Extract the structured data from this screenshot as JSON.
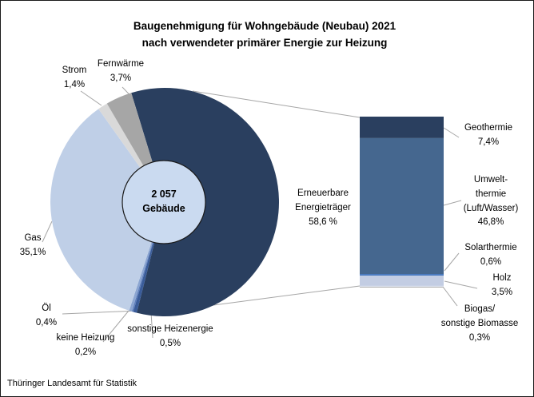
{
  "title": {
    "line1": "Baugenehmigung für Wohngebäude (Neubau) 2021",
    "line2": "nach verwendeter primärer Energie zur Heizung"
  },
  "source": "Thüringer Landesamt für Statistik",
  "labels": {
    "strom": [
      "Strom",
      "1,4%"
    ],
    "fernwaerme": [
      "Fernwärme",
      "3,7%"
    ],
    "gas": [
      "Gas",
      "35,1%"
    ],
    "oel": [
      "Öl",
      "0,4%"
    ],
    "keine_heizung": [
      "keine Heizung",
      "0,2%"
    ],
    "sonstige": [
      "sonstige Heizenergie",
      "0,5%"
    ],
    "erneuerbare": [
      "Erneuerbare",
      "Energieträger",
      "58,6 %"
    ],
    "geothermie": [
      "Geothermie",
      "7,4%"
    ],
    "umwelt": [
      "Umwelt-",
      "thermie",
      "(Luft/Wasser)",
      "46,8%"
    ],
    "solarthermie": [
      "Solarthermie",
      "0,6%"
    ],
    "holz": [
      "Holz",
      "3,5%"
    ],
    "biogas": [
      "Biogas/",
      "sonstige Biomasse",
      "0,3%"
    ],
    "center": [
      "2 057",
      "Gebäude"
    ]
  },
  "chart_data": {
    "type": "pie",
    "title": "Baugenehmigung für Wohngebäude (Neubau) 2021 nach verwendeter primärer Energie zur Heizung",
    "unit": "%",
    "center_total": "2 057 Gebäude",
    "hole_color": "#cadaf0",
    "line_color": "#a6a6a6",
    "slices": [
      {
        "key": "erneuerbare",
        "label": "Erneuerbare Energieträger",
        "value": 58.6,
        "color": "#2a3f5f"
      },
      {
        "key": "sonstige-heizenergie",
        "label": "sonstige Heizenergie",
        "value": 0.5,
        "color": "#3a5c99"
      },
      {
        "key": "keine-heizung",
        "label": "keine Heizung",
        "value": 0.2,
        "color": "#5b7cba"
      },
      {
        "key": "oel",
        "label": "Öl",
        "value": 0.4,
        "color": "#8ba5d1"
      },
      {
        "key": "gas",
        "label": "Gas",
        "value": 35.1,
        "color": "#bfcfe7"
      },
      {
        "key": "strom",
        "label": "Strom",
        "value": 1.4,
        "color": "#d9d9d9"
      },
      {
        "key": "fernwaerme",
        "label": "Fernwärme",
        "value": 3.7,
        "color": "#a6a6a6"
      }
    ],
    "breakdown": {
      "parent": "Erneuerbare Energieträger",
      "parent_value": 58.6,
      "segments": [
        {
          "key": "geothermie",
          "label": "Geothermie",
          "value": 7.4,
          "color": "#2a3f5f"
        },
        {
          "key": "umweltthermie",
          "label": "Umweltthermie (Luft/Wasser)",
          "value": 46.8,
          "color": "#45678f"
        },
        {
          "key": "solarthermie",
          "label": "Solarthermie",
          "value": 0.6,
          "color": "#4a7ac0"
        },
        {
          "key": "holz",
          "label": "Holz",
          "value": 3.5,
          "color": "#c3cde3"
        },
        {
          "key": "biogas",
          "label": "Biogas/sonstige Biomasse",
          "value": 0.3,
          "color": "#dde3f0"
        }
      ]
    }
  }
}
